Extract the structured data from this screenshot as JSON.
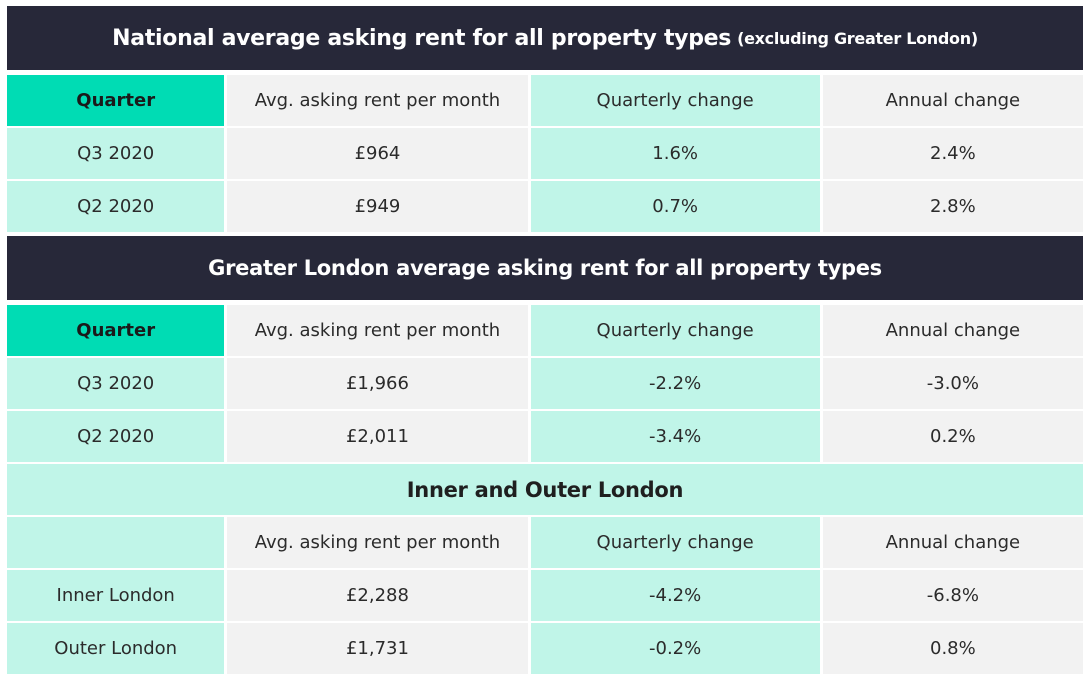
{
  "national": {
    "title": "National average asking rent for all property types",
    "title_note": "(excluding Greater London)",
    "headers": [
      "Quarter",
      "Avg. asking rent per month",
      "Quarterly change",
      "Annual change"
    ],
    "rows": [
      [
        "Q3 2020",
        "£964",
        "1.6%",
        "2.4%"
      ],
      [
        "Q2 2020",
        "£949",
        "0.7%",
        "2.8%"
      ]
    ]
  },
  "london": {
    "title": "Greater London average asking rent for all property types",
    "headers": [
      "Quarter",
      "Avg. asking rent per month",
      "Quarterly change",
      "Annual change"
    ],
    "rows": [
      [
        "Q3 2020",
        "£1,966",
        "-2.2%",
        "-3.0%"
      ],
      [
        "Q2 2020",
        "£2,011",
        "-3.4%",
        "0.2%"
      ]
    ]
  },
  "inner_outer": {
    "title": "Inner and Outer London",
    "headers": [
      "",
      "Avg. asking rent per month",
      "Quarterly change",
      "Annual change"
    ],
    "rows": [
      [
        "Inner London",
        "£2,288",
        "-4.2%",
        "-6.8%"
      ],
      [
        "Outer London",
        "£1,731",
        "-0.2%",
        "0.8%"
      ]
    ]
  },
  "colors": {
    "title_bg": "#272839",
    "accent": "#00dcb4",
    "mint": "#c0f5e8",
    "grey": "#f2f2f2"
  }
}
